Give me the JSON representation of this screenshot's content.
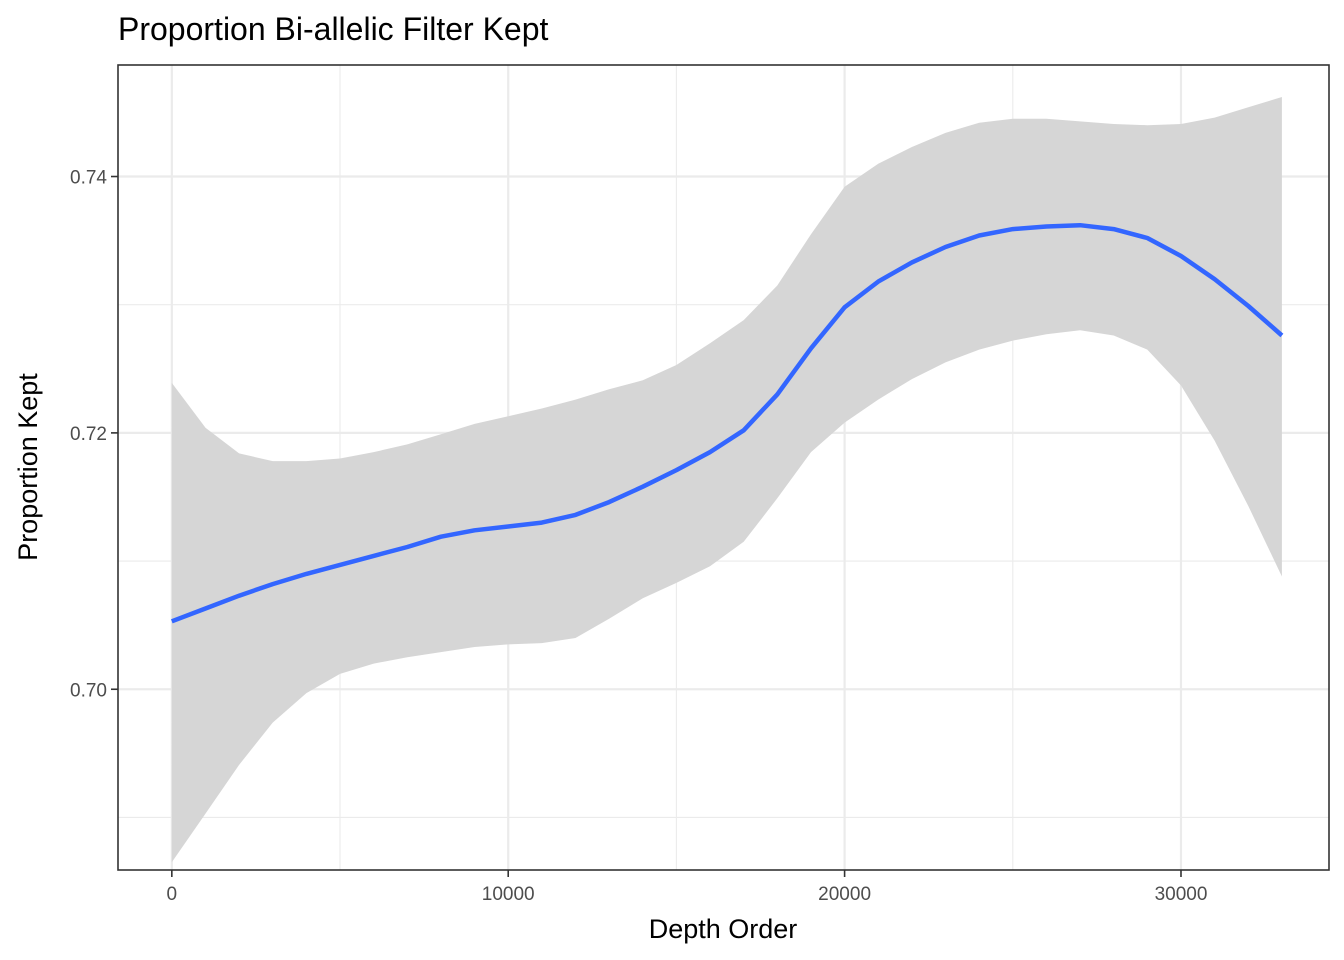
{
  "chart_data": {
    "type": "line",
    "title": "Proportion Bi-allelic Filter Kept",
    "xlabel": "Depth Order",
    "ylabel": "Proportion Kept",
    "xlim": [
      -1600,
      34400
    ],
    "ylim": [
      0.6859,
      0.7487
    ],
    "x_ticks": [
      0,
      10000,
      20000,
      30000
    ],
    "x_tick_labels": [
      "0",
      "10000",
      "20000",
      "30000"
    ],
    "x_minor_ticks": [
      5000,
      15000,
      25000
    ],
    "y_ticks": [
      0.7,
      0.72,
      0.74
    ],
    "y_tick_labels": [
      "0.70",
      "0.72",
      "0.74"
    ],
    "y_minor_ticks": [
      0.69,
      0.71,
      0.73
    ],
    "grid": true,
    "legend": "none",
    "colors": {
      "line": "#3366ff",
      "band": "#d6d6d6",
      "grid": "#ebebeb",
      "panel_border": "#333333"
    },
    "series": [
      {
        "x": [
          0,
          1000,
          2000,
          3000,
          4000,
          5000,
          6000,
          7000,
          8000,
          9000,
          10000,
          11000,
          12000,
          13000,
          14000,
          15000,
          16000,
          17000,
          18000,
          19000,
          20000,
          21000,
          22000,
          23000,
          24000,
          25000,
          26000,
          27000,
          28000,
          29000,
          30000,
          31000,
          32000,
          33000
        ],
        "y": [
          0.7053,
          0.7063,
          0.7073,
          0.7082,
          0.709,
          0.7097,
          0.7104,
          0.7111,
          0.7119,
          0.7124,
          0.7127,
          0.713,
          0.7136,
          0.7146,
          0.7158,
          0.7171,
          0.7185,
          0.7202,
          0.723,
          0.7266,
          0.7298,
          0.7318,
          0.7333,
          0.7345,
          0.7354,
          0.7359,
          0.7361,
          0.7362,
          0.7359,
          0.7352,
          0.7338,
          0.732,
          0.7299,
          0.7276
        ],
        "lower": [
          0.6865,
          0.6903,
          0.6941,
          0.6974,
          0.6997,
          0.7012,
          0.702,
          0.7025,
          0.7029,
          0.7033,
          0.7035,
          0.7036,
          0.704,
          0.7055,
          0.7071,
          0.7083,
          0.7096,
          0.7115,
          0.7149,
          0.7185,
          0.7208,
          0.7226,
          0.7242,
          0.7255,
          0.7265,
          0.7272,
          0.7277,
          0.728,
          0.7276,
          0.7265,
          0.7237,
          0.7194,
          0.7143,
          0.7088
        ],
        "upper": [
          0.7239,
          0.7204,
          0.7184,
          0.7178,
          0.7178,
          0.718,
          0.7185,
          0.7191,
          0.7199,
          0.7207,
          0.7213,
          0.7219,
          0.7226,
          0.7234,
          0.7241,
          0.7253,
          0.727,
          0.7288,
          0.7315,
          0.7355,
          0.7392,
          0.741,
          0.7423,
          0.7434,
          0.7442,
          0.7445,
          0.7445,
          0.7443,
          0.7441,
          0.744,
          0.7441,
          0.7446,
          0.7454,
          0.7462
        ]
      }
    ]
  }
}
